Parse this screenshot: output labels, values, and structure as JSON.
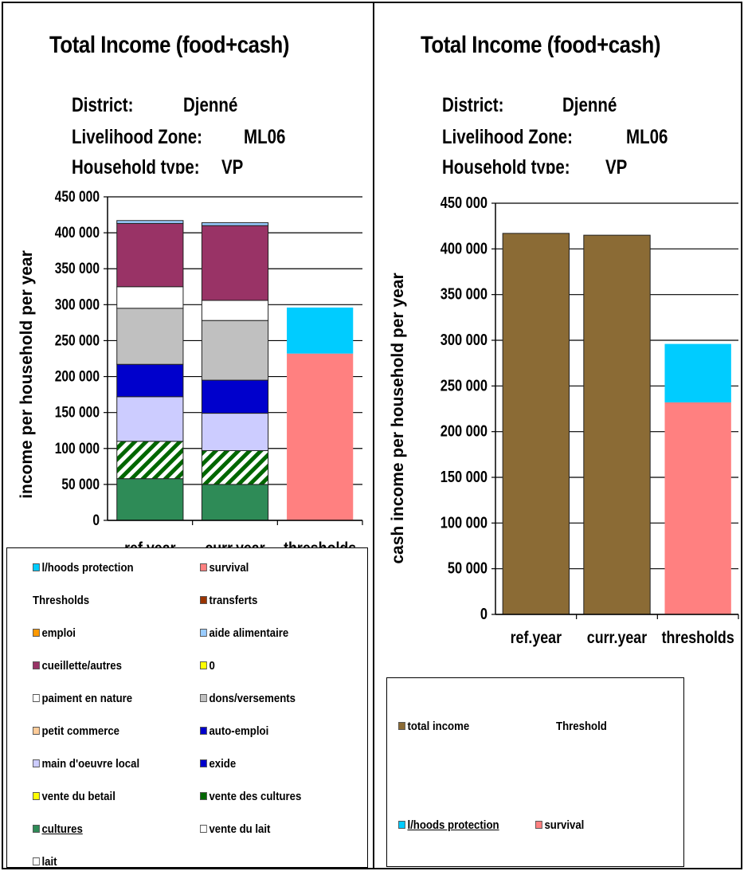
{
  "left": {
    "title": "Total Income (food+cash)",
    "meta": [
      {
        "label": "District:",
        "value": "Djenné"
      },
      {
        "label": "Livelihood Zone:",
        "value": "ML06"
      },
      {
        "label": "Household type:",
        "value": "VP"
      }
    ],
    "ylabel": "income per household per year",
    "legend": [
      {
        "label": "l/hoods protection",
        "color": "#00ccff"
      },
      {
        "label": "survival",
        "color": "#ff8080"
      },
      {
        "label": "Thresholds",
        "color": ""
      },
      {
        "label": "transferts",
        "color": "#993300"
      },
      {
        "label": "emploi",
        "color": "#ff9900"
      },
      {
        "label": "aide alimentaire",
        "color": "#99ccff"
      },
      {
        "label": "cueillette/autres",
        "color": "#993366"
      },
      {
        "label": "0",
        "color": "#ffff00"
      },
      {
        "label": "paiment en nature",
        "color": "#ffffff"
      },
      {
        "label": "dons/versements",
        "color": "#c0c0c0"
      },
      {
        "label": "petit commerce",
        "color": "#ffcc99"
      },
      {
        "label": "auto-emploi",
        "color": "#0000cc"
      },
      {
        "label": "main d'oeuvre local",
        "color": "#ccccff"
      },
      {
        "label": "exide",
        "color": "#0000cc"
      },
      {
        "label": "vente du betail",
        "color": "#ffff00"
      },
      {
        "label": "vente des cultures",
        "color": "#006600"
      },
      {
        "label": "cultures",
        "color": "#2e8b57"
      },
      {
        "label": "vente du lait",
        "color": "#ffffff"
      },
      {
        "label": "lait",
        "color": "#ffffff"
      }
    ]
  },
  "right": {
    "title": "Total Income (food+cash)",
    "meta": [
      {
        "label": "District:",
        "value": "Djenné"
      },
      {
        "label": "Livelihood Zone:",
        "value": "ML06"
      },
      {
        "label": "Household type:",
        "value": "VP"
      }
    ],
    "ylabel": "cash income per household per year",
    "legend": {
      "total_income": {
        "label": "total income",
        "color": "#8b6b35"
      },
      "threshold": "Threshold",
      "protection": {
        "label": "l/hoods protection",
        "color": "#00ccff"
      },
      "survival": {
        "label": "survival",
        "color": "#ff8080"
      }
    }
  },
  "chart_data": [
    {
      "type": "bar",
      "stacked": true,
      "title": "Total Income (food+cash)",
      "categories": [
        "ref.year",
        "curr.year",
        "thresholds"
      ],
      "ylim": [
        0,
        450000
      ],
      "ytick_labels": [
        "0",
        "50 000",
        "100 000",
        "150 000",
        "200 000",
        "250 000",
        "300 000",
        "350 000",
        "400 000",
        "450 000"
      ],
      "gridlines": true,
      "series": [
        {
          "name": "cultures",
          "color": "#2e8b57",
          "values": [
            58000,
            50000,
            0
          ]
        },
        {
          "name": "vente des cultures",
          "color": "#006600",
          "pattern": "diagonal-hatch",
          "values": [
            52000,
            47000,
            0
          ]
        },
        {
          "name": "main d'oeuvre local",
          "color": "#ccccff",
          "values": [
            62000,
            52000,
            0
          ]
        },
        {
          "name": "exide",
          "color": "#0000cc",
          "values": [
            45000,
            46000,
            0
          ]
        },
        {
          "name": "dons/versements",
          "color": "#c0c0c0",
          "values": [
            78000,
            83000,
            0
          ]
        },
        {
          "name": "paiment en nature",
          "color": "#ffffff",
          "values": [
            30000,
            28000,
            0
          ]
        },
        {
          "name": "cueillette/autres",
          "color": "#993366",
          "values": [
            88000,
            104000,
            0
          ]
        },
        {
          "name": "aide alimentaire",
          "color": "#99ccff",
          "values": [
            4000,
            4000,
            0
          ]
        },
        {
          "name": "survival",
          "color": "#ff8080",
          "values": [
            0,
            0,
            232000
          ]
        },
        {
          "name": "l/hoods protection",
          "color": "#00ccff",
          "values": [
            0,
            0,
            64000
          ]
        }
      ]
    },
    {
      "type": "bar",
      "stacked": true,
      "title": "Total Income (food+cash)",
      "ylabel": "cash income per household per year",
      "categories": [
        "ref.year",
        "curr.year",
        "thresholds"
      ],
      "ylim": [
        0,
        450000
      ],
      "ytick_labels": [
        "0",
        "50 000",
        "100 000",
        "150 000",
        "200 000",
        "250 000",
        "300 000",
        "350 000",
        "400 000",
        "450 000"
      ],
      "gridlines": true,
      "series": [
        {
          "name": "total income",
          "color": "#8b6b35",
          "values": [
            417000,
            415000,
            0
          ]
        },
        {
          "name": "survival",
          "color": "#ff8080",
          "values": [
            0,
            0,
            232000
          ]
        },
        {
          "name": "l/hoods protection",
          "color": "#00ccff",
          "values": [
            0,
            0,
            64000
          ]
        }
      ]
    }
  ]
}
